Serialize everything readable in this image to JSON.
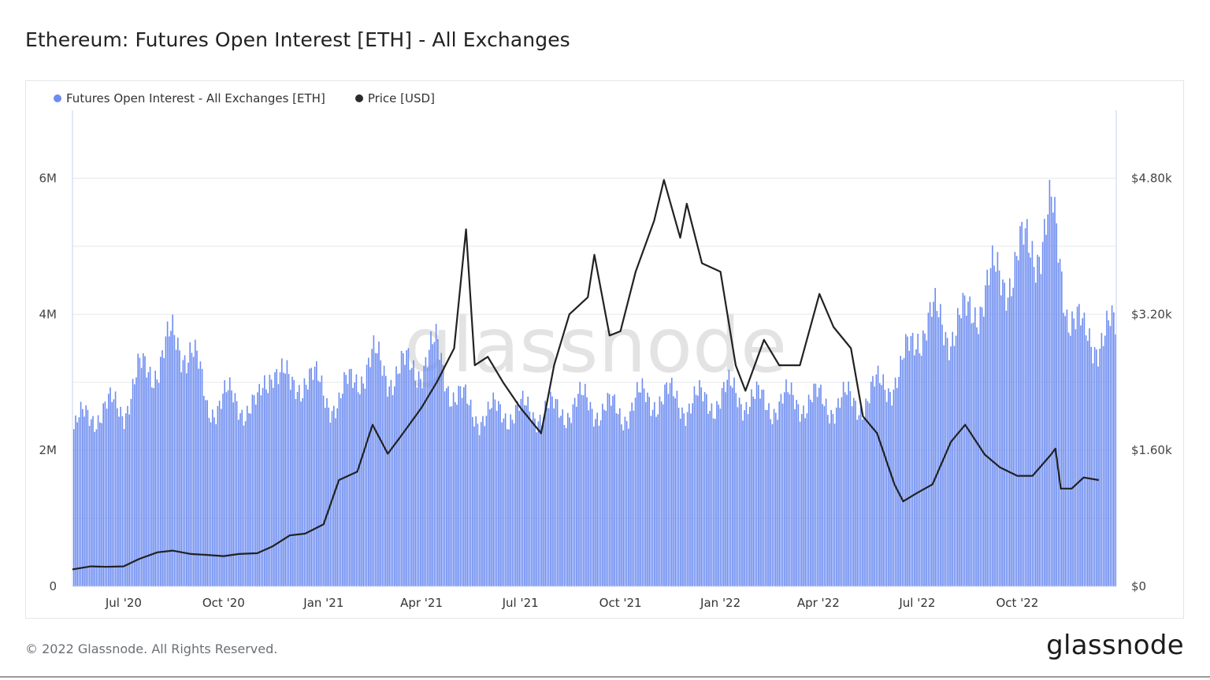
{
  "header": {
    "title": "Ethereum: Futures Open Interest [ETH] - All Exchanges"
  },
  "legend": [
    {
      "label": "Futures Open Interest - All Exchanges [ETH]",
      "color": "#6c8cf0"
    },
    {
      "label": "Price [USD]",
      "color": "#2b2b2b"
    }
  ],
  "watermark": "glassnode",
  "footer": {
    "copyright": "© 2022 Glassnode. All Rights Reserved.",
    "brand": "glassnode"
  },
  "chart_data": {
    "type": "bar",
    "grid": true,
    "legend_position": "top-left",
    "x_ticks": [
      "Jul '20",
      "Oct '20",
      "Jan '21",
      "Apr '21",
      "Jul '21",
      "Oct '21",
      "Jan '22",
      "Apr '22",
      "Jul '22",
      "Oct '22"
    ],
    "y_left": {
      "ticks": [
        "0",
        "2M",
        "4M",
        "6M"
      ],
      "range": [
        0,
        7000000
      ]
    },
    "y_right": {
      "ticks": [
        "$0",
        "$1.60k",
        "$3.20k",
        "$4.80k"
      ],
      "range": [
        0,
        5600
      ]
    },
    "series": [
      {
        "name": "Futures Open Interest - All Exchanges [ETH]",
        "type": "bar",
        "axis": "left",
        "x": [
          "2020-05-15",
          "2020-06-01",
          "2020-06-15",
          "2020-07-01",
          "2020-07-15",
          "2020-08-01",
          "2020-08-15",
          "2020-09-01",
          "2020-09-15",
          "2020-10-01",
          "2020-10-15",
          "2020-11-01",
          "2020-11-15",
          "2020-12-01",
          "2020-12-15",
          "2021-01-01",
          "2021-01-15",
          "2021-02-01",
          "2021-02-15",
          "2021-03-01",
          "2021-03-15",
          "2021-04-01",
          "2021-04-15",
          "2021-05-01",
          "2021-05-15",
          "2021-06-01",
          "2021-06-15",
          "2021-07-01",
          "2021-07-15",
          "2021-08-01",
          "2021-08-15",
          "2021-09-01",
          "2021-09-15",
          "2021-10-01",
          "2021-10-15",
          "2021-11-01",
          "2021-11-15",
          "2021-12-01",
          "2021-12-15",
          "2022-01-01",
          "2022-01-15",
          "2022-02-01",
          "2022-02-15",
          "2022-03-01",
          "2022-03-15",
          "2022-04-01",
          "2022-04-15",
          "2022-05-01",
          "2022-05-15",
          "2022-06-01",
          "2022-06-15",
          "2022-07-01",
          "2022-07-15",
          "2022-08-01",
          "2022-08-15",
          "2022-09-01",
          "2022-09-15",
          "2022-10-01",
          "2022-10-15",
          "2022-11-01",
          "2022-11-15",
          "2022-12-01",
          "2022-12-15"
        ],
        "values": [
          2300000,
          2550000,
          2600000,
          2650000,
          3100000,
          3300000,
          3600000,
          3500000,
          2650000,
          2750000,
          2700000,
          2600000,
          3350000,
          2850000,
          3150000,
          2800000,
          2700000,
          3150000,
          3300000,
          3150000,
          3150000,
          3300000,
          3450000,
          2800000,
          2600000,
          2500000,
          2600000,
          2550000,
          2600000,
          2550000,
          2650000,
          2700000,
          2600000,
          2550000,
          2700000,
          2800000,
          2750000,
          2700000,
          2700000,
          2800000,
          2850000,
          2700000,
          2700000,
          2700000,
          2750000,
          2700000,
          2700000,
          2700000,
          2750000,
          3000000,
          3100000,
          3800000,
          3900000,
          3800000,
          3900000,
          4400000,
          4500000,
          4800000,
          5000000,
          5400000,
          4200000,
          3600000,
          3700000
        ]
      },
      {
        "name": "Price [USD]",
        "type": "line",
        "axis": "right",
        "x": [
          "2020-05-15",
          "2020-06-01",
          "2020-06-15",
          "2020-07-01",
          "2020-07-15",
          "2020-08-01",
          "2020-08-15",
          "2020-09-01",
          "2020-09-15",
          "2020-10-01",
          "2020-10-15",
          "2020-11-01",
          "2020-11-15",
          "2020-12-01",
          "2020-12-15",
          "2021-01-01",
          "2021-01-15",
          "2021-02-01",
          "2021-02-15",
          "2021-03-01",
          "2021-03-15",
          "2021-04-01",
          "2021-04-15",
          "2021-05-01",
          "2021-05-12",
          "2021-05-20",
          "2021-06-01",
          "2021-06-15",
          "2021-07-01",
          "2021-07-20",
          "2021-08-01",
          "2021-08-15",
          "2021-09-01",
          "2021-09-07",
          "2021-09-21",
          "2021-10-01",
          "2021-10-15",
          "2021-11-01",
          "2021-11-10",
          "2021-11-25",
          "2021-12-01",
          "2021-12-15",
          "2022-01-01",
          "2022-01-15",
          "2022-01-24",
          "2022-02-10",
          "2022-02-24",
          "2022-03-15",
          "2022-04-02",
          "2022-04-15",
          "2022-05-01",
          "2022-05-12",
          "2022-05-25",
          "2022-06-10",
          "2022-06-18",
          "2022-07-01",
          "2022-07-15",
          "2022-08-01",
          "2022-08-14",
          "2022-09-01",
          "2022-09-15",
          "2022-10-01",
          "2022-10-15",
          "2022-11-01",
          "2022-11-05",
          "2022-11-10",
          "2022-11-20",
          "2022-12-01",
          "2022-12-15"
        ],
        "values": [
          200,
          235,
          230,
          235,
          320,
          400,
          420,
          380,
          370,
          355,
          380,
          390,
          470,
          600,
          620,
          730,
          1250,
          1350,
          1900,
          1560,
          1800,
          2100,
          2400,
          2800,
          4200,
          2600,
          2700,
          2400,
          2100,
          1800,
          2600,
          3200,
          3400,
          3900,
          2950,
          3000,
          3700,
          4300,
          4780,
          4100,
          4500,
          3800,
          3700,
          2600,
          2300,
          2900,
          2600,
          2600,
          3440,
          3050,
          2800,
          2000,
          1800,
          1200,
          1000,
          1100,
          1200,
          1700,
          1900,
          1550,
          1400,
          1300,
          1300,
          1550,
          1620,
          1150,
          1150,
          1280,
          1250
        ]
      }
    ]
  }
}
